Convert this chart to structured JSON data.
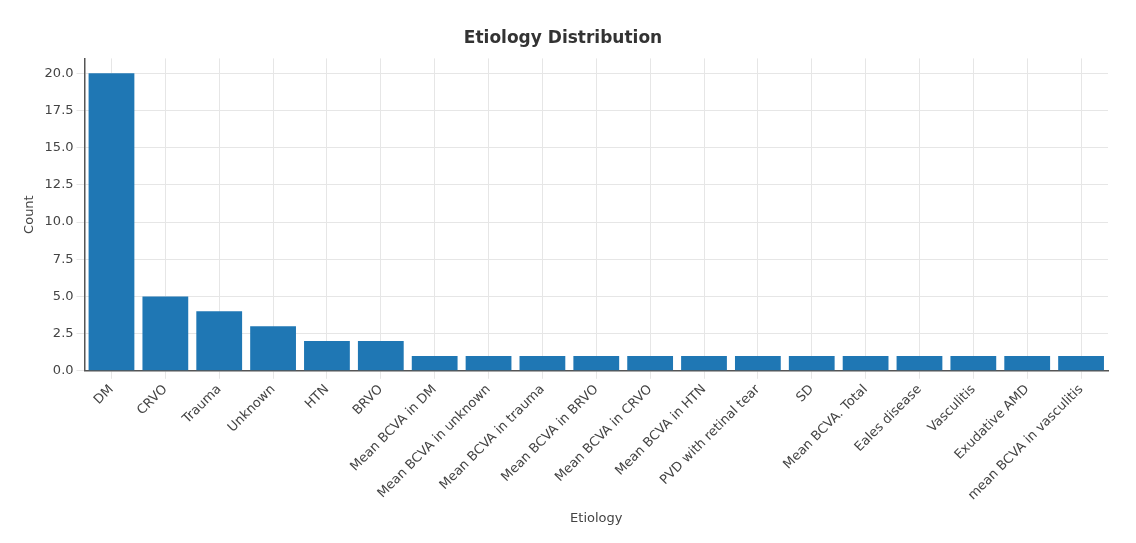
{
  "chart_data": {
    "type": "bar",
    "title": "Etiology Distribution",
    "xlabel": "Etiology",
    "ylabel": "Count",
    "categories": [
      "DM",
      "CRVO",
      "Trauma",
      "Unknown",
      "HTN",
      "BRVO",
      "Mean BCVA in DM",
      "Mean BCVA in unknown",
      "Mean BCVA in trauma",
      "Mean BCVA in BRVO",
      "Mean BCVA in CRVO",
      "Mean BCVA in HTN",
      "PVD with retinal tear",
      "SD",
      "Mean BCVA. Total",
      "Eales disease",
      "Vasculitis",
      "Exudative AMD",
      "mean BCVA in vasculitis"
    ],
    "values": [
      20,
      5,
      4,
      3,
      2,
      2,
      1,
      1,
      1,
      1,
      1,
      1,
      1,
      1,
      1,
      1,
      1,
      1,
      1
    ],
    "color": "#1f77b4",
    "ylim": [
      0,
      21
    ],
    "yticks": [
      {
        "value": 0,
        "label": "0.0"
      },
      2.5,
      {
        "value": 5,
        "label": "5.0"
      },
      7.5,
      {
        "value": 10,
        "label": "10.0"
      },
      12.5,
      {
        "value": 15,
        "label": "15.0"
      },
      17.5,
      {
        "value": 20,
        "label": "20.0"
      }
    ],
    "grid": true
  }
}
